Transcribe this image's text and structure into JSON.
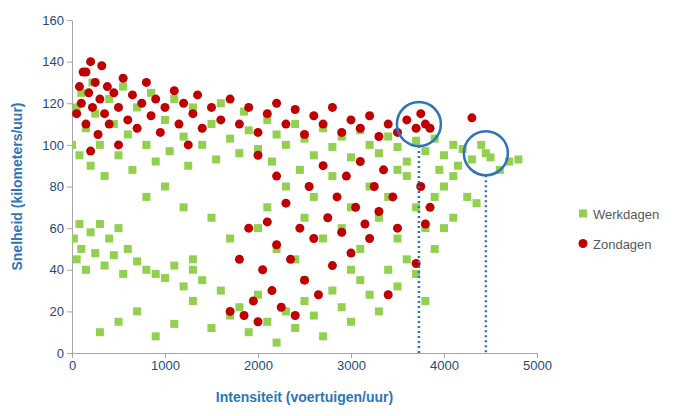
{
  "chart_data": {
    "type": "scatter",
    "x_label": "Intensiteit (voertuigen/uur)",
    "y_label": "Snelheid (kilometers/uur)",
    "xlim": [
      0,
      5000
    ],
    "xticks": [
      0,
      1000,
      2000,
      3000,
      4000,
      5000
    ],
    "ylim": [
      0,
      160
    ],
    "yticks": [
      0,
      20,
      40,
      60,
      80,
      100,
      120,
      140,
      160
    ],
    "grid": false,
    "legend": "right",
    "highlights": [
      {
        "x": 3730,
        "y": 110
      },
      {
        "x": 4450,
        "y": 96
      }
    ],
    "series": [
      {
        "name": "Werkdagen",
        "color": "#92d050",
        "marker": "square",
        "x": [
          0,
          50,
          80,
          100,
          150,
          200,
          220,
          250,
          300,
          350,
          400,
          450,
          500,
          550,
          600,
          650,
          700,
          800,
          850,
          900,
          1000,
          1050,
          1100,
          1200,
          1250,
          1300,
          1400,
          1500,
          1550,
          1600,
          1700,
          1800,
          1850,
          1900,
          2000,
          2100,
          2150,
          2200,
          2300,
          2400,
          2450,
          2500,
          2600,
          2700,
          2800,
          2900,
          3000,
          3100,
          3200,
          3300,
          3400,
          3500,
          3600,
          3700,
          3800,
          3900,
          4000,
          4100,
          4150,
          4200,
          4300,
          4400,
          4450,
          4500,
          4600,
          4700,
          4800,
          4250,
          4350,
          4100,
          3950,
          20,
          50,
          80,
          100,
          150,
          200,
          250,
          300,
          350,
          400,
          450,
          500,
          550,
          600,
          700,
          800,
          900,
          1000,
          1100,
          1200,
          1300,
          1400,
          300,
          500,
          700,
          900,
          1100,
          1300,
          1500,
          1600,
          1700,
          1800,
          1900,
          2000,
          2100,
          2200,
          2300,
          2400,
          2500,
          2600,
          2700,
          2800,
          2900,
          3000,
          3100,
          3200,
          3300,
          3400,
          3500,
          3600,
          3700,
          3800,
          3900,
          4000,
          2000,
          2100,
          2200,
          2300,
          2400,
          2500,
          2600,
          2700,
          2800,
          2900,
          3000,
          3100,
          3200,
          3300,
          3400,
          3500,
          3600,
          3700,
          3800,
          3900,
          4000,
          4100,
          3500,
          3000,
          2500,
          1700,
          1500,
          1200,
          1000,
          800,
          1300
        ],
        "values": [
          100,
          118,
          95,
          125,
          108,
          90,
          130,
          115,
          100,
          85,
          122,
          110,
          95,
          128,
          105,
          88,
          118,
          100,
          125,
          92,
          112,
          97,
          122,
          104,
          90,
          118,
          100,
          110,
          93,
          120,
          103,
          96,
          116,
          107,
          98,
          112,
          92,
          105,
          100,
          110,
          88,
          103,
          95,
          108,
          99,
          104,
          94,
          107,
          100,
          96,
          104,
          99,
          92,
          102,
          97,
          103,
          95,
          100,
          90,
          98,
          93,
          100,
          96,
          94,
          88,
          92,
          93,
          75,
          72,
          85,
          88,
          55,
          45,
          62,
          50,
          40,
          58,
          48,
          62,
          42,
          55,
          47,
          60,
          38,
          50,
          44,
          40,
          38,
          36,
          42,
          32,
          40,
          35,
          10,
          15,
          20,
          8,
          14,
          25,
          12,
          30,
          18,
          22,
          10,
          28,
          15,
          5,
          20,
          12,
          25,
          18,
          8,
          30,
          22,
          15,
          35,
          28,
          20,
          40,
          32,
          45,
          38,
          25,
          50,
          60,
          60,
          70,
          50,
          80,
          45,
          65,
          75,
          55,
          85,
          60,
          70,
          50,
          80,
          65,
          75,
          55,
          85,
          70,
          60,
          75,
          80,
          65,
          88,
          40,
          35,
          55,
          65,
          70,
          80,
          75,
          45
        ]
      },
      {
        "name": "Zondagen",
        "color": "#c00000",
        "marker": "circle",
        "x": [
          50,
          80,
          100,
          120,
          150,
          180,
          200,
          220,
          250,
          280,
          300,
          320,
          350,
          380,
          400,
          450,
          500,
          550,
          600,
          650,
          700,
          750,
          800,
          850,
          900,
          950,
          1000,
          1100,
          1150,
          1200,
          1300,
          1350,
          1400,
          1500,
          1600,
          1700,
          1800,
          1900,
          2000,
          2100,
          2200,
          2300,
          2400,
          2500,
          2600,
          2700,
          2800,
          2900,
          3000,
          3100,
          3200,
          3300,
          3400,
          3500,
          3600,
          3700,
          3750,
          3800,
          3850,
          4300,
          1250,
          200,
          500,
          150,
          1700,
          1800,
          1850,
          1900,
          1950,
          2000,
          2050,
          2100,
          2150,
          2200,
          2250,
          2300,
          2350,
          2400,
          2450,
          2500,
          2550,
          2600,
          2650,
          2700,
          2750,
          2800,
          2850,
          2900,
          2950,
          3000,
          3050,
          3100,
          3150,
          3200,
          3250,
          3300,
          3350,
          3400,
          3450,
          3500,
          3750,
          3800,
          3700,
          3850,
          2000,
          2200
        ],
        "values": [
          115,
          128,
          120,
          135,
          110,
          125,
          140,
          118,
          130,
          105,
          122,
          138,
          115,
          128,
          110,
          125,
          118,
          132,
          112,
          124,
          108,
          120,
          130,
          114,
          122,
          106,
          118,
          126,
          110,
          120,
          115,
          124,
          108,
          118,
          112,
          122,
          110,
          118,
          106,
          115,
          120,
          110,
          117,
          105,
          114,
          110,
          118,
          106,
          112,
          108,
          114,
          104,
          110,
          106,
          112,
          108,
          115,
          110,
          108,
          113,
          100,
          97,
          100,
          135,
          20,
          45,
          18,
          60,
          25,
          15,
          40,
          63,
          30,
          52,
          22,
          72,
          45,
          18,
          60,
          35,
          80,
          55,
          28,
          90,
          65,
          42,
          75,
          58,
          85,
          48,
          70,
          92,
          62,
          55,
          80,
          68,
          88,
          28,
          75,
          60,
          80,
          62,
          43,
          70,
          95,
          85
        ]
      }
    ]
  }
}
